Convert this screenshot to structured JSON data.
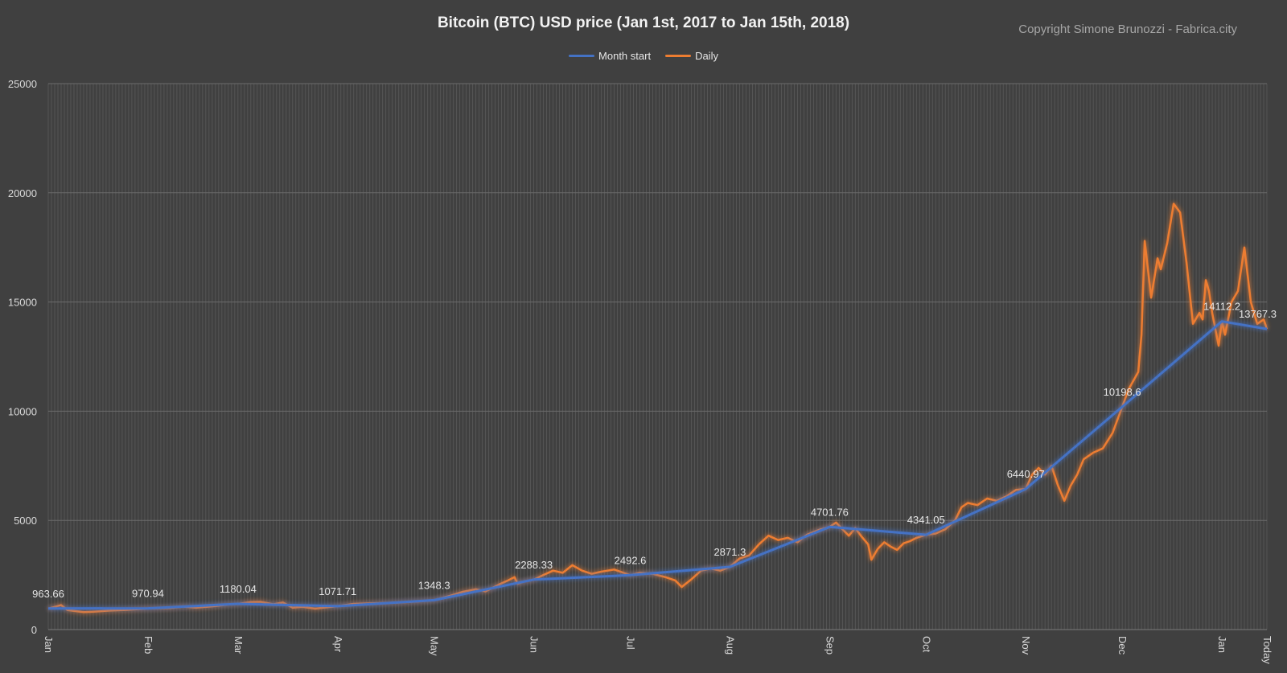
{
  "title": "Bitcoin (BTC) USD price (Jan 1st, 2017 to Jan 15th, 2018)",
  "copyright": "Copyright Simone Brunozzi - Fabrica.city",
  "legend": [
    {
      "name": "Month start",
      "color": "#4472c4"
    },
    {
      "name": "Daily",
      "color": "#ed7d31"
    }
  ],
  "chart_data": {
    "type": "line",
    "title": "Bitcoin (BTC) USD price (Jan 1st, 2017 to Jan 15th, 2018)",
    "xlabel": "",
    "ylabel": "",
    "ylim": [
      0,
      25000
    ],
    "yticks": [
      0,
      5000,
      10000,
      15000,
      20000,
      25000
    ],
    "grid": true,
    "legend_position": "top-center",
    "x_tick_labels": [
      "Jan",
      "Feb",
      "Mar",
      "Apr",
      "May",
      "Jun",
      "Jul",
      "Aug",
      "Sep",
      "Oct",
      "Nov",
      "Dec",
      "Jan",
      "Today"
    ],
    "x_tick_days": [
      0,
      31,
      59,
      90,
      120,
      151,
      181,
      212,
      243,
      273,
      304,
      334,
      365,
      379
    ],
    "series": [
      {
        "name": "Month start",
        "color": "#4472c4",
        "points": [
          {
            "day": 0,
            "value": 963.66,
            "label": "963.66"
          },
          {
            "day": 31,
            "value": 970.94,
            "label": "970.94"
          },
          {
            "day": 59,
            "value": 1180.04,
            "label": "1180.04"
          },
          {
            "day": 90,
            "value": 1071.71,
            "label": "1071.71"
          },
          {
            "day": 120,
            "value": 1348.3,
            "label": "1348.3"
          },
          {
            "day": 151,
            "value": 2288.33,
            "label": "2288.33"
          },
          {
            "day": 181,
            "value": 2492.6,
            "label": "2492.6"
          },
          {
            "day": 212,
            "value": 2871.3,
            "label": "2871.3"
          },
          {
            "day": 243,
            "value": 4701.76,
            "label": "4701.76"
          },
          {
            "day": 273,
            "value": 4341.05,
            "label": "4341.05"
          },
          {
            "day": 304,
            "value": 6440.97,
            "label": "6440.97"
          },
          {
            "day": 334,
            "value": 10198.6,
            "label": "10198.6"
          },
          {
            "day": 365,
            "value": 14112.2,
            "label": "14112.2"
          },
          {
            "day": 379,
            "value": 13767.3,
            "label": "13767.3"
          }
        ]
      },
      {
        "name": "Daily",
        "color": "#ed7d31",
        "points": [
          {
            "day": 0,
            "value": 960
          },
          {
            "day": 4,
            "value": 1120
          },
          {
            "day": 6,
            "value": 890
          },
          {
            "day": 11,
            "value": 800
          },
          {
            "day": 14,
            "value": 820
          },
          {
            "day": 19,
            "value": 870
          },
          {
            "day": 24,
            "value": 900
          },
          {
            "day": 31,
            "value": 970
          },
          {
            "day": 38,
            "value": 990
          },
          {
            "day": 42,
            "value": 1050
          },
          {
            "day": 46,
            "value": 1000
          },
          {
            "day": 52,
            "value": 1080
          },
          {
            "day": 56,
            "value": 1150
          },
          {
            "day": 59,
            "value": 1180
          },
          {
            "day": 63,
            "value": 1260
          },
          {
            "day": 66,
            "value": 1270
          },
          {
            "day": 70,
            "value": 1160
          },
          {
            "day": 73,
            "value": 1240
          },
          {
            "day": 76,
            "value": 1000
          },
          {
            "day": 79,
            "value": 1040
          },
          {
            "day": 83,
            "value": 960
          },
          {
            "day": 90,
            "value": 1071
          },
          {
            "day": 95,
            "value": 1180
          },
          {
            "day": 100,
            "value": 1200
          },
          {
            "day": 105,
            "value": 1220
          },
          {
            "day": 110,
            "value": 1240
          },
          {
            "day": 116,
            "value": 1300
          },
          {
            "day": 120,
            "value": 1348
          },
          {
            "day": 125,
            "value": 1550
          },
          {
            "day": 129,
            "value": 1730
          },
          {
            "day": 133,
            "value": 1850
          },
          {
            "day": 136,
            "value": 1750
          },
          {
            "day": 140,
            "value": 2050
          },
          {
            "day": 143,
            "value": 2250
          },
          {
            "day": 145,
            "value": 2400
          },
          {
            "day": 146,
            "value": 2100
          },
          {
            "day": 148,
            "value": 2200
          },
          {
            "day": 151,
            "value": 2288
          },
          {
            "day": 154,
            "value": 2500
          },
          {
            "day": 157,
            "value": 2700
          },
          {
            "day": 160,
            "value": 2600
          },
          {
            "day": 163,
            "value": 2950
          },
          {
            "day": 166,
            "value": 2700
          },
          {
            "day": 169,
            "value": 2550
          },
          {
            "day": 172,
            "value": 2650
          },
          {
            "day": 176,
            "value": 2750
          },
          {
            "day": 181,
            "value": 2492
          },
          {
            "day": 184,
            "value": 2600
          },
          {
            "day": 188,
            "value": 2550
          },
          {
            "day": 192,
            "value": 2400
          },
          {
            "day": 195,
            "value": 2250
          },
          {
            "day": 197,
            "value": 1950
          },
          {
            "day": 200,
            "value": 2300
          },
          {
            "day": 203,
            "value": 2700
          },
          {
            "day": 206,
            "value": 2800
          },
          {
            "day": 209,
            "value": 2700
          },
          {
            "day": 212,
            "value": 2871
          },
          {
            "day": 215,
            "value": 3250
          },
          {
            "day": 218,
            "value": 3400
          },
          {
            "day": 221,
            "value": 3900
          },
          {
            "day": 224,
            "value": 4300
          },
          {
            "day": 227,
            "value": 4100
          },
          {
            "day": 230,
            "value": 4200
          },
          {
            "day": 233,
            "value": 4000
          },
          {
            "day": 236,
            "value": 4350
          },
          {
            "day": 240,
            "value": 4580
          },
          {
            "day": 243,
            "value": 4701
          },
          {
            "day": 245,
            "value": 4900
          },
          {
            "day": 247,
            "value": 4600
          },
          {
            "day": 249,
            "value": 4300
          },
          {
            "day": 251,
            "value": 4650
          },
          {
            "day": 253,
            "value": 4250
          },
          {
            "day": 255,
            "value": 3900
          },
          {
            "day": 256,
            "value": 3200
          },
          {
            "day": 258,
            "value": 3700
          },
          {
            "day": 260,
            "value": 4000
          },
          {
            "day": 262,
            "value": 3800
          },
          {
            "day": 264,
            "value": 3650
          },
          {
            "day": 266,
            "value": 3950
          },
          {
            "day": 268,
            "value": 4050
          },
          {
            "day": 270,
            "value": 4200
          },
          {
            "day": 273,
            "value": 4341
          },
          {
            "day": 276,
            "value": 4400
          },
          {
            "day": 279,
            "value": 4600
          },
          {
            "day": 282,
            "value": 5000
          },
          {
            "day": 284,
            "value": 5600
          },
          {
            "day": 286,
            "value": 5800
          },
          {
            "day": 289,
            "value": 5700
          },
          {
            "day": 292,
            "value": 6000
          },
          {
            "day": 295,
            "value": 5900
          },
          {
            "day": 298,
            "value": 6100
          },
          {
            "day": 301,
            "value": 6400
          },
          {
            "day": 304,
            "value": 6440
          },
          {
            "day": 306,
            "value": 7100
          },
          {
            "day": 308,
            "value": 7400
          },
          {
            "day": 310,
            "value": 7100
          },
          {
            "day": 312,
            "value": 7500
          },
          {
            "day": 314,
            "value": 6600
          },
          {
            "day": 316,
            "value": 5900
          },
          {
            "day": 318,
            "value": 6600
          },
          {
            "day": 320,
            "value": 7100
          },
          {
            "day": 322,
            "value": 7800
          },
          {
            "day": 325,
            "value": 8100
          },
          {
            "day": 328,
            "value": 8300
          },
          {
            "day": 331,
            "value": 9000
          },
          {
            "day": 334,
            "value": 10198
          },
          {
            "day": 336,
            "value": 11000
          },
          {
            "day": 339,
            "value": 11800
          },
          {
            "day": 340,
            "value": 13500
          },
          {
            "day": 341,
            "value": 17800
          },
          {
            "day": 343,
            "value": 15200
          },
          {
            "day": 345,
            "value": 17000
          },
          {
            "day": 346,
            "value": 16500
          },
          {
            "day": 348,
            "value": 17700
          },
          {
            "day": 350,
            "value": 19500
          },
          {
            "day": 352,
            "value": 19100
          },
          {
            "day": 354,
            "value": 16800
          },
          {
            "day": 356,
            "value": 14000
          },
          {
            "day": 358,
            "value": 14500
          },
          {
            "day": 359,
            "value": 14200
          },
          {
            "day": 360,
            "value": 16000
          },
          {
            "day": 361,
            "value": 15500
          },
          {
            "day": 362,
            "value": 14500
          },
          {
            "day": 364,
            "value": 13000
          },
          {
            "day": 365,
            "value": 14112
          },
          {
            "day": 366,
            "value": 13500
          },
          {
            "day": 368,
            "value": 15000
          },
          {
            "day": 370,
            "value": 15500
          },
          {
            "day": 372,
            "value": 17500
          },
          {
            "day": 374,
            "value": 15000
          },
          {
            "day": 376,
            "value": 14000
          },
          {
            "day": 378,
            "value": 14200
          },
          {
            "day": 379,
            "value": 13767
          }
        ]
      }
    ]
  }
}
